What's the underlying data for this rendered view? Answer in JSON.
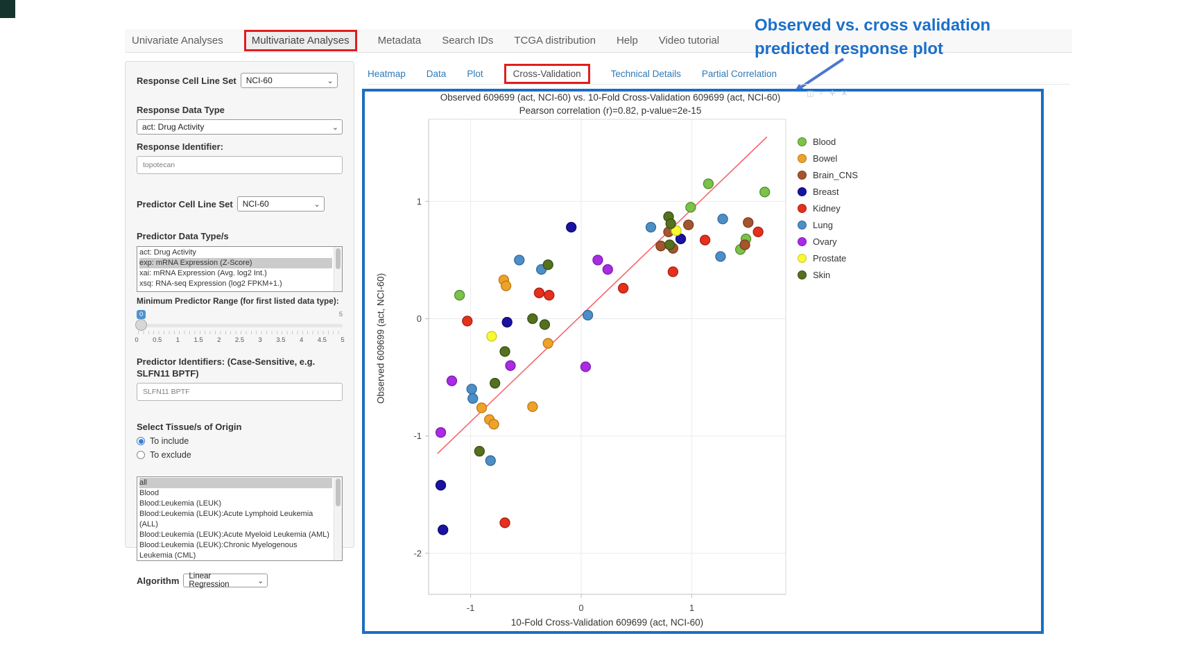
{
  "colors": {
    "highlight_red": "#e21d1d",
    "box_blue": "#1b6ec2",
    "link_blue": "#2e79b8",
    "annotation_blue": "#1b6fca",
    "arrow_blue": "#4977cf"
  },
  "nav": {
    "items": [
      {
        "label": "Univariate Analyses",
        "active": false,
        "boxed": false
      },
      {
        "label": "Multivariate Analyses",
        "active": true,
        "boxed": true
      },
      {
        "label": "Metadata",
        "active": false,
        "boxed": false
      },
      {
        "label": "Search IDs",
        "active": false,
        "boxed": false
      },
      {
        "label": "TCGA distribution",
        "active": false,
        "boxed": false
      },
      {
        "label": "Help",
        "active": false,
        "boxed": false
      },
      {
        "label": "Video tutorial",
        "active": false,
        "boxed": false
      }
    ]
  },
  "annotation": {
    "line1": "Observed vs. cross validation",
    "line2": "predicted response plot"
  },
  "sidebar": {
    "response_cell_line_set": {
      "label": "Response Cell Line Set",
      "value": "NCI-60"
    },
    "response_data_type": {
      "label": "Response Data Type",
      "value": "act: Drug Activity"
    },
    "response_identifier": {
      "label": "Response Identifier:",
      "value": "topotecan"
    },
    "predictor_cell_line_set": {
      "label": "Predictor Cell Line Set",
      "value": "NCI-60"
    },
    "predictor_data_types": {
      "label": "Predictor Data Type/s",
      "options": [
        {
          "label": "act: Drug Activity",
          "selected": false
        },
        {
          "label": "exp: mRNA Expression (Z-Score)",
          "selected": true
        },
        {
          "label": "xai: mRNA Expression (Avg. log2 Int.)",
          "selected": false
        },
        {
          "label": "xsq: RNA-seq Expression (log2 FPKM+1.)",
          "selected": false
        }
      ]
    },
    "min_predictor_range": {
      "label": "Minimum Predictor Range (for first listed data type):",
      "value": "0",
      "max_label": "5",
      "ticks": [
        "0",
        "0.5",
        "1",
        "1.5",
        "2",
        "2.5",
        "3",
        "3.5",
        "4",
        "4.5",
        "5"
      ]
    },
    "predictor_identifiers": {
      "label": "Predictor Identifiers: (Case-Sensitive, e.g. SLFN11 BPTF)",
      "value": "SLFN11 BPTF"
    },
    "tissue_origin": {
      "label": "Select Tissue/s of Origin",
      "include_label": "To include",
      "exclude_label": "To exclude",
      "include_selected": true,
      "options": [
        {
          "label": "all",
          "selected": true
        },
        {
          "label": "Blood",
          "selected": false
        },
        {
          "label": "Blood:Leukemia (LEUK)",
          "selected": false
        },
        {
          "label": "Blood:Leukemia (LEUK):Acute Lymphoid Leukemia (ALL)",
          "selected": false
        },
        {
          "label": "Blood:Leukemia (LEUK):Acute Myeloid Leukemia (AML)",
          "selected": false
        },
        {
          "label": "Blood:Leukemia (LEUK):Chronic Myelogenous Leukemia (CML)",
          "selected": false
        }
      ]
    },
    "algorithm": {
      "label": "Algorithm",
      "value": "Linear Regression"
    }
  },
  "subtabs": {
    "items": [
      {
        "label": "Heatmap",
        "active": false,
        "boxed": false
      },
      {
        "label": "Data",
        "active": false,
        "boxed": false
      },
      {
        "label": "Plot",
        "active": false,
        "boxed": false
      },
      {
        "label": "Cross-Validation",
        "active": true,
        "boxed": true
      },
      {
        "label": "Technical Details",
        "active": false,
        "boxed": false
      },
      {
        "label": "Partial Correlation",
        "active": false,
        "boxed": false
      }
    ]
  },
  "modebar": {
    "icons": [
      "camera-icon",
      "zoom-icon",
      "pan-icon",
      "close-icon"
    ]
  },
  "chart_data": {
    "type": "scatter",
    "title": "Observed 609699 (act, NCI-60) vs. 10-Fold Cross-Validation 609699 (act, NCI-60)",
    "subtitle": "Pearson correlation (r)=0.82, p-value=2e-15",
    "xlabel": "10-Fold Cross-Validation 609699 (act, NCI-60)",
    "ylabel": "Observed 609699 (act, NCI-60)",
    "xlim": [
      -1.38,
      1.85
    ],
    "ylim": [
      -2.35,
      1.7
    ],
    "xticks": [
      -1,
      0,
      1
    ],
    "yticks": [
      1,
      0,
      -1,
      -2
    ],
    "grid": true,
    "legend_position": "right",
    "trend_line": {
      "color": "#f8646c",
      "x1": -1.3,
      "y1": -1.15,
      "x2": 1.68,
      "y2": 1.55
    },
    "series": [
      {
        "name": "Blood",
        "color": "#7cc24a",
        "stroke": "#4e8b2a",
        "points": [
          [
            1.66,
            1.08
          ],
          [
            1.15,
            1.15
          ],
          [
            0.99,
            0.95
          ],
          [
            1.49,
            0.68
          ],
          [
            1.44,
            0.59
          ],
          [
            -1.1,
            0.2
          ]
        ]
      },
      {
        "name": "Bowel",
        "color": "#efa22a",
        "stroke": "#b97a14",
        "points": [
          [
            -0.7,
            0.33
          ],
          [
            -0.68,
            0.28
          ],
          [
            -0.3,
            -0.21
          ],
          [
            -0.44,
            -0.75
          ],
          [
            -0.9,
            -0.76
          ],
          [
            -0.83,
            -0.86
          ],
          [
            -0.79,
            -0.9
          ]
        ]
      },
      {
        "name": "Brain_CNS",
        "color": "#a5552e",
        "stroke": "#7a3c1e",
        "points": [
          [
            1.51,
            0.82
          ],
          [
            1.48,
            0.63
          ],
          [
            0.97,
            0.8
          ],
          [
            0.79,
            0.74
          ],
          [
            0.72,
            0.62
          ],
          [
            0.83,
            0.6
          ]
        ]
      },
      {
        "name": "Breast",
        "color": "#1a12a0",
        "stroke": "#0d0870",
        "points": [
          [
            -0.09,
            0.78
          ],
          [
            0.9,
            0.68
          ],
          [
            -0.67,
            -0.03
          ],
          [
            -1.27,
            -1.42
          ],
          [
            -1.25,
            -1.8
          ]
        ]
      },
      {
        "name": "Kidney",
        "color": "#e5301d",
        "stroke": "#a81f10",
        "points": [
          [
            1.6,
            0.74
          ],
          [
            1.12,
            0.67
          ],
          [
            0.83,
            0.4
          ],
          [
            -0.38,
            0.22
          ],
          [
            -0.29,
            0.2
          ],
          [
            0.38,
            0.26
          ],
          [
            -1.03,
            -0.02
          ],
          [
            -0.69,
            -1.74
          ]
        ]
      },
      {
        "name": "Lung",
        "color": "#4d8ec5",
        "stroke": "#2f6a9e",
        "points": [
          [
            1.28,
            0.85
          ],
          [
            1.26,
            0.53
          ],
          [
            0.63,
            0.78
          ],
          [
            -0.56,
            0.5
          ],
          [
            -0.36,
            0.42
          ],
          [
            0.06,
            0.03
          ],
          [
            -0.99,
            -0.6
          ],
          [
            -0.98,
            -0.68
          ],
          [
            -0.82,
            -1.21
          ]
        ]
      },
      {
        "name": "Ovary",
        "color": "#a92be3",
        "stroke": "#7d1cb0",
        "points": [
          [
            0.15,
            0.5
          ],
          [
            0.24,
            0.42
          ],
          [
            0.04,
            -0.41
          ],
          [
            -0.64,
            -0.4
          ],
          [
            -1.17,
            -0.53
          ],
          [
            -1.27,
            -0.97
          ]
        ]
      },
      {
        "name": "Prostate",
        "color": "#f9f932",
        "stroke": "#c9c920",
        "points": [
          [
            0.86,
            0.75
          ],
          [
            -0.81,
            -0.15
          ]
        ]
      },
      {
        "name": "Skin",
        "color": "#55701f",
        "stroke": "#374f12",
        "points": [
          [
            0.79,
            0.87
          ],
          [
            0.81,
            0.81
          ],
          [
            0.8,
            0.63
          ],
          [
            -0.3,
            0.46
          ],
          [
            -0.44,
            0.0
          ],
          [
            -0.33,
            -0.05
          ],
          [
            -0.69,
            -0.28
          ],
          [
            -0.78,
            -0.55
          ],
          [
            -0.92,
            -1.13
          ]
        ]
      }
    ]
  }
}
